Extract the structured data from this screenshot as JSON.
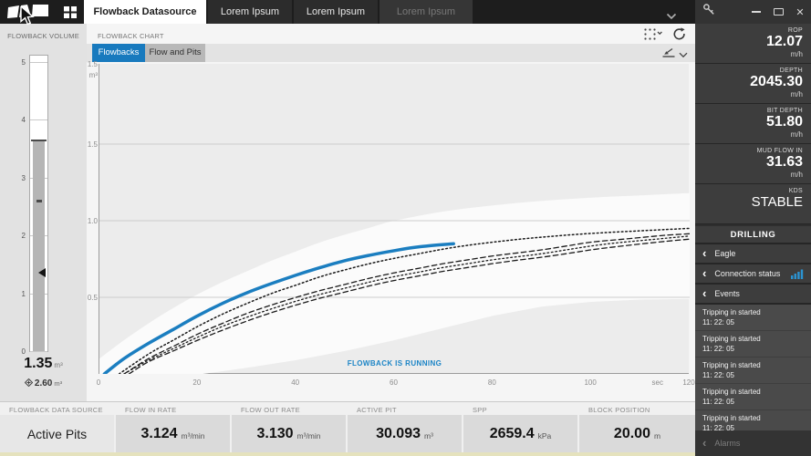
{
  "titlebar": {
    "active_tab": "Flowback Datasource",
    "tabs": [
      {
        "label": "Lorem Ipsum"
      },
      {
        "label": "Lorem Ipsum"
      },
      {
        "label": "Lorem Ipsum"
      }
    ]
  },
  "left_panel": {
    "title": "FLOWBACK VOLUME",
    "scale_ticks": [
      5,
      4,
      3,
      2,
      1,
      0
    ],
    "scale_max": 5,
    "fill_top_value": 3.65,
    "target_marker_value": 2.6,
    "current_marker_value": 1.35,
    "value": "1.35",
    "value_unit": "m³",
    "secondary_value": "2.60",
    "secondary_unit": "m³"
  },
  "chart_panel": {
    "title": "FLOWBACK CHART",
    "tab_active": "Flowbacks",
    "tab_inactive": "Flow and Pits",
    "status": "FLOWBACK IS RUNNING"
  },
  "chart_data": {
    "type": "line",
    "title": "Flowbacks",
    "ylabel": "m³",
    "xlabel": "sec",
    "xlim": [
      0,
      120
    ],
    "ylim": [
      0,
      2.0
    ],
    "xticks": [
      0,
      20,
      40,
      60,
      80,
      100,
      120
    ],
    "yticks": [
      0.5,
      1.0,
      1.5
    ],
    "axis_top_label": "1.5",
    "axis_unit_label": "m³",
    "grid": true,
    "legend": "none",
    "annotation": "FLOWBACK IS RUNNING",
    "envelope": {
      "name": "expected-flowback-envelope",
      "fill": "#fbfbfb",
      "upper": [
        [
          0,
          0.1
        ],
        [
          5,
          0.22
        ],
        [
          10,
          0.33
        ],
        [
          15,
          0.43
        ],
        [
          20,
          0.52
        ],
        [
          25,
          0.6
        ],
        [
          30,
          0.67
        ],
        [
          35,
          0.74
        ],
        [
          40,
          0.8
        ],
        [
          45,
          0.86
        ],
        [
          50,
          0.91
        ],
        [
          55,
          0.955
        ],
        [
          60,
          1.0
        ],
        [
          70,
          1.06
        ],
        [
          80,
          1.1
        ],
        [
          90,
          1.13
        ],
        [
          100,
          1.15
        ],
        [
          110,
          1.165
        ],
        [
          120,
          1.18
        ]
      ],
      "lower": [
        [
          0,
          0
        ],
        [
          21,
          0
        ],
        [
          30,
          0.04
        ],
        [
          40,
          0.09
        ],
        [
          50,
          0.15
        ],
        [
          60,
          0.22
        ],
        [
          70,
          0.3
        ],
        [
          80,
          0.38
        ],
        [
          90,
          0.44
        ],
        [
          100,
          0.47
        ],
        [
          110,
          0.485
        ],
        [
          120,
          0.49
        ]
      ]
    },
    "series": [
      {
        "name": "model-dotted-1",
        "style": "dotted",
        "color": "#1a1a1a",
        "width": 1.5,
        "points": [
          [
            4,
            0
          ],
          [
            10,
            0.13
          ],
          [
            15,
            0.22
          ],
          [
            20,
            0.31
          ],
          [
            25,
            0.39
          ],
          [
            30,
            0.46
          ],
          [
            35,
            0.525
          ],
          [
            40,
            0.58
          ],
          [
            45,
            0.635
          ],
          [
            50,
            0.68
          ],
          [
            55,
            0.72
          ],
          [
            60,
            0.755
          ],
          [
            65,
            0.785
          ],
          [
            70,
            0.815
          ],
          [
            75,
            0.84
          ],
          [
            80,
            0.86
          ],
          [
            85,
            0.878
          ],
          [
            90,
            0.893
          ],
          [
            95,
            0.906
          ],
          [
            100,
            0.917
          ],
          [
            105,
            0.926
          ],
          [
            110,
            0.934
          ],
          [
            115,
            0.942
          ],
          [
            120,
            0.95
          ]
        ]
      },
      {
        "name": "model-dashed-1",
        "style": "dashed",
        "color": "#1a1a1a",
        "width": 1.3,
        "points": [
          [
            5,
            0
          ],
          [
            10,
            0.1
          ],
          [
            15,
            0.18
          ],
          [
            20,
            0.26
          ],
          [
            25,
            0.33
          ],
          [
            30,
            0.395
          ],
          [
            35,
            0.45
          ],
          [
            40,
            0.5
          ],
          [
            45,
            0.545
          ],
          [
            50,
            0.585
          ],
          [
            55,
            0.625
          ],
          [
            60,
            0.66
          ],
          [
            65,
            0.69
          ],
          [
            70,
            0.72
          ],
          [
            75,
            0.745
          ],
          [
            80,
            0.77
          ],
          [
            85,
            0.79
          ],
          [
            90,
            0.81
          ],
          [
            95,
            0.835
          ],
          [
            100,
            0.86
          ],
          [
            105,
            0.875
          ],
          [
            110,
            0.89
          ],
          [
            115,
            0.905
          ],
          [
            120,
            0.915
          ]
        ]
      },
      {
        "name": "model-dotted-2",
        "style": "dotted",
        "color": "#1a1a1a",
        "width": 1.3,
        "points": [
          [
            5,
            0
          ],
          [
            10,
            0.09
          ],
          [
            15,
            0.165
          ],
          [
            20,
            0.24
          ],
          [
            25,
            0.31
          ],
          [
            30,
            0.37
          ],
          [
            35,
            0.425
          ],
          [
            40,
            0.475
          ],
          [
            45,
            0.52
          ],
          [
            50,
            0.56
          ],
          [
            55,
            0.6
          ],
          [
            60,
            0.635
          ],
          [
            65,
            0.665
          ],
          [
            70,
            0.695
          ],
          [
            75,
            0.72
          ],
          [
            80,
            0.745
          ],
          [
            85,
            0.765
          ],
          [
            90,
            0.785
          ],
          [
            95,
            0.81
          ],
          [
            100,
            0.835
          ],
          [
            105,
            0.855
          ],
          [
            110,
            0.87
          ],
          [
            115,
            0.885
          ],
          [
            120,
            0.9
          ]
        ]
      },
      {
        "name": "model-dashed-2",
        "style": "dashed",
        "color": "#1a1a1a",
        "width": 1.3,
        "points": [
          [
            6,
            0
          ],
          [
            10,
            0.08
          ],
          [
            15,
            0.15
          ],
          [
            20,
            0.22
          ],
          [
            25,
            0.285
          ],
          [
            30,
            0.345
          ],
          [
            35,
            0.4
          ],
          [
            40,
            0.45
          ],
          [
            45,
            0.495
          ],
          [
            50,
            0.535
          ],
          [
            55,
            0.575
          ],
          [
            60,
            0.61
          ],
          [
            65,
            0.64
          ],
          [
            70,
            0.67
          ],
          [
            75,
            0.695
          ],
          [
            80,
            0.72
          ],
          [
            85,
            0.742
          ],
          [
            90,
            0.762
          ],
          [
            95,
            0.785
          ],
          [
            100,
            0.81
          ],
          [
            105,
            0.83
          ],
          [
            110,
            0.848
          ],
          [
            115,
            0.865
          ],
          [
            120,
            0.88
          ]
        ]
      },
      {
        "name": "actual-flowback",
        "style": "solid",
        "color": "#1b7ec0",
        "width": 3.5,
        "points": [
          [
            1,
            0
          ],
          [
            5,
            0.1
          ],
          [
            10,
            0.2
          ],
          [
            15,
            0.29
          ],
          [
            20,
            0.38
          ],
          [
            25,
            0.46
          ],
          [
            30,
            0.53
          ],
          [
            35,
            0.59
          ],
          [
            40,
            0.645
          ],
          [
            45,
            0.695
          ],
          [
            50,
            0.74
          ],
          [
            55,
            0.775
          ],
          [
            60,
            0.805
          ],
          [
            65,
            0.83
          ],
          [
            72,
            0.85
          ]
        ]
      }
    ]
  },
  "bottom_bar": {
    "columns": [
      {
        "header": "FLOWBACK DATA SOURCE",
        "value": "Active Pits",
        "unit": ""
      },
      {
        "header": "FLOW IN RATE",
        "value": "3.124",
        "unit": "m³/min"
      },
      {
        "header": "FLOW OUT RATE",
        "value": "3.130",
        "unit": "m³/min"
      },
      {
        "header": "ACTIVE PIT",
        "value": "30.093",
        "unit": "m³"
      },
      {
        "header": "SPP",
        "value": "2659.4",
        "unit": "kPa"
      },
      {
        "header": "BLOCK POSITION",
        "value": "20.00",
        "unit": "m"
      }
    ]
  },
  "sidebar": {
    "metrics": [
      {
        "label": "ROP",
        "value": "12.07",
        "unit": "m/h"
      },
      {
        "label": "DEPTH",
        "value": "2045.30",
        "unit": "m/h"
      },
      {
        "label": "BIT DEPTH",
        "value": "51.80",
        "unit": "m/h"
      },
      {
        "label": "MUD FLOW IN",
        "value": "31.63",
        "unit": "m/h"
      },
      {
        "label": "KDS",
        "value": "STABLE",
        "unit": ""
      }
    ],
    "section_title": "DRILLING",
    "nav": [
      {
        "label": "Eagle"
      },
      {
        "label": "Connection status"
      },
      {
        "label": "Events"
      }
    ],
    "events": [
      {
        "title": "Tripping in started",
        "time": "11: 22: 05"
      },
      {
        "title": "Tripping in started",
        "time": "11: 22: 05"
      },
      {
        "title": "Tripping in started",
        "time": "11: 22: 05"
      },
      {
        "title": "Tripping in started",
        "time": "11: 22: 05"
      },
      {
        "title": "Tripping in started",
        "time": "11: 22: 05"
      }
    ],
    "alarms_label": "Alarms"
  },
  "colors": {
    "accent_blue": "#187abe",
    "status_blue": "#1b84c6",
    "signal_blue": "#2b93d1"
  }
}
